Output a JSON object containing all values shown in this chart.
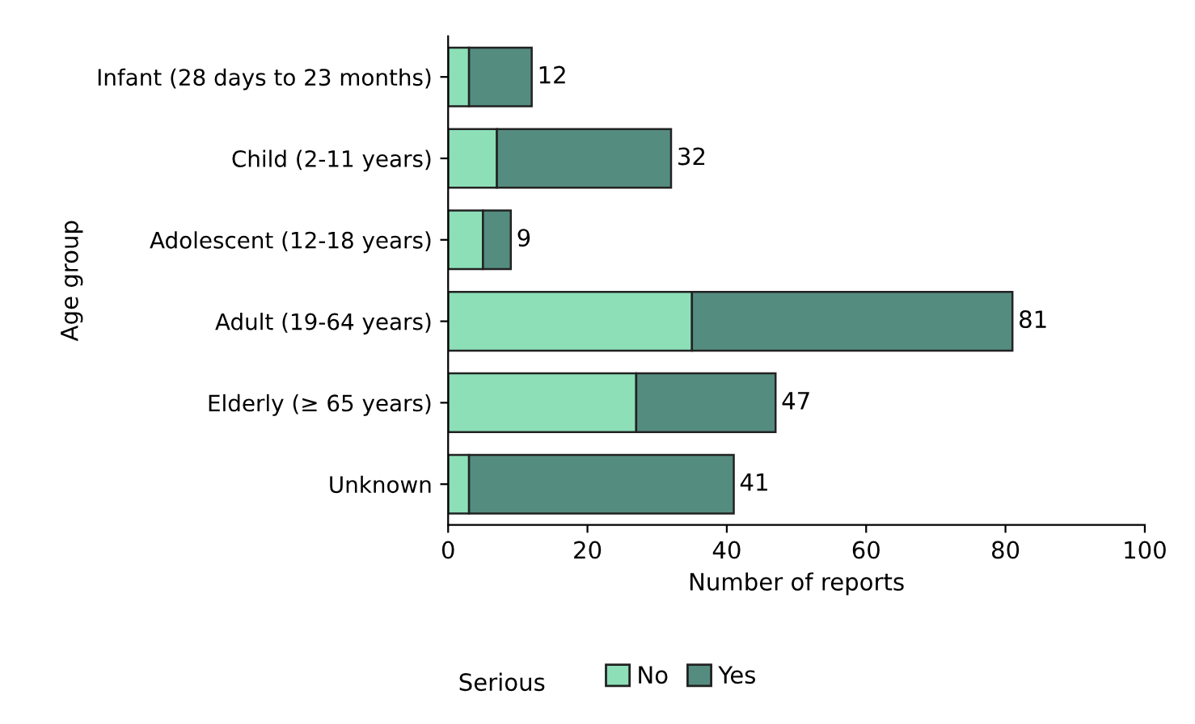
{
  "chart_data": {
    "type": "bar",
    "orientation": "horizontal",
    "stacked": true,
    "categories": [
      "Infant (28 days to 23 months)",
      "Child (2-11 years)",
      "Adolescent (12-18 years)",
      "Adult (19-64 years)",
      "Elderly (≥ 65 years)",
      "Unknown"
    ],
    "series": [
      {
        "name": "No",
        "color": "#8ddfb8",
        "values": [
          3,
          7,
          5,
          35,
          27,
          3
        ]
      },
      {
        "name": "Yes",
        "color": "#558c80",
        "values": [
          9,
          25,
          4,
          46,
          20,
          38
        ]
      }
    ],
    "totals": [
      "12",
      "32",
      "9",
      "81",
      "47",
      "41"
    ],
    "xlabel": "Number of reports",
    "ylabel": "Age group",
    "legend_title": "Serious",
    "legend": "bottom",
    "xlim": [
      0,
      100
    ],
    "xticks": [
      0,
      20,
      40,
      60,
      80,
      100
    ],
    "grid": false
  }
}
